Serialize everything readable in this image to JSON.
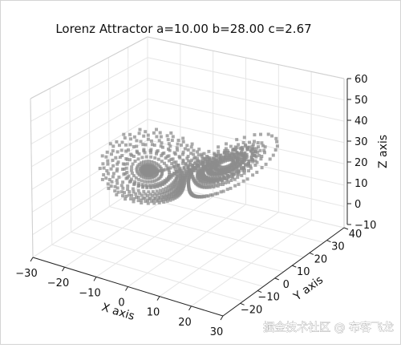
{
  "chart_data": {
    "type": "scatter",
    "title": "Lorenz Attractor a=10.00 b=28.00 c=2.67",
    "xlabel": "X axis",
    "ylabel": "Y axis",
    "zlabel": "Z axis",
    "x_ticks": [
      "−30",
      "−20",
      "−10",
      "0",
      "10",
      "20",
      "30"
    ],
    "y_ticks": [
      "−20",
      "−10",
      "0",
      "10",
      "20",
      "30",
      "40"
    ],
    "z_ticks": [
      "−10",
      "0",
      "10",
      "20",
      "30",
      "40",
      "50",
      "60"
    ],
    "xlim": [
      -30,
      30
    ],
    "ylim": [
      -30,
      40
    ],
    "zlim": [
      -10,
      60
    ],
    "parameters": {
      "a": 10.0,
      "b": 28.0,
      "c": 2.67
    },
    "marker": "square",
    "marker_color": "#8c8c8c",
    "grid": true
  },
  "watermark": "掘金技术社区 @ 布客飞龙"
}
